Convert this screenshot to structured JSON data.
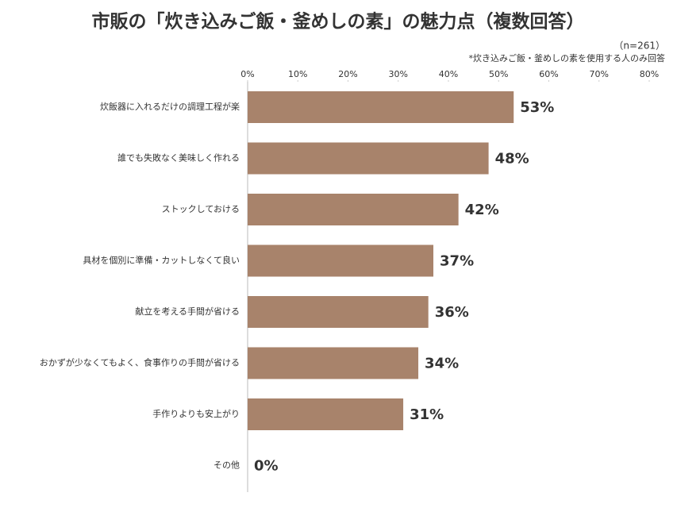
{
  "chart_data": {
    "type": "barh",
    "title": "市販の「炊き込みご飯・釜めしの素」の魅力点（複数回答）",
    "sample_note": "（n=261）",
    "footnote": "*炊き込みご飯・釜めしの素を使用する人のみ回答",
    "categories": [
      "炊飯器に入れるだけの調理工程が楽",
      "誰でも失敗なく美味しく作れる",
      "ストックしておける",
      "具材を個別に準備・カットしなくて良い",
      "献立を考える手間が省ける",
      "おかずが少なくてもよく、食事作りの手間が省ける",
      "手作りよりも安上がり",
      "その他"
    ],
    "values": [
      53,
      48,
      42,
      37,
      36,
      34,
      31,
      0
    ],
    "value_labels": [
      "53%",
      "48%",
      "42%",
      "37%",
      "36%",
      "34%",
      "31%",
      "0%"
    ],
    "color": "#a8836b",
    "xlim": [
      0,
      80
    ],
    "xticks": [
      {
        "value": 0,
        "label": "0%"
      },
      {
        "value": 10,
        "label": "10%"
      },
      {
        "value": 20,
        "label": "20%"
      },
      {
        "value": 30,
        "label": "30%"
      },
      {
        "value": 40,
        "label": "40%"
      },
      {
        "value": 50,
        "label": "50%"
      },
      {
        "value": 60,
        "label": "60%"
      },
      {
        "value": 70,
        "label": "70%"
      },
      {
        "value": 80,
        "label": "80%"
      }
    ]
  }
}
